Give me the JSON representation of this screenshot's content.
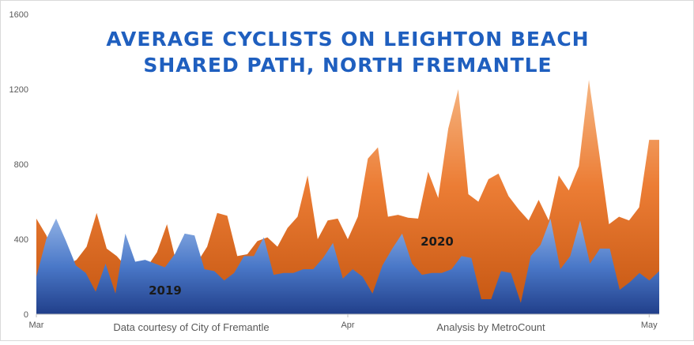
{
  "chart_data": {
    "type": "area",
    "title_lines": [
      "AVERAGE CYCLISTS ON LEIGHTON BEACH",
      "SHARED PATH, NORTH FREMANTLE"
    ],
    "ylim": [
      0,
      1600
    ],
    "yticks": [
      0,
      400,
      800,
      1200,
      1600
    ],
    "xtick_labels": [
      {
        "label": "Mar",
        "index": 0
      },
      {
        "label": "Apr",
        "index": 31
      },
      {
        "label": "May",
        "index": 61
      }
    ],
    "grid": false,
    "colors": {
      "2019": "#4472c4",
      "2020": "#ed7d31"
    },
    "series": [
      {
        "name": "2020",
        "values": [
          510,
          420,
          270,
          260,
          290,
          360,
          540,
          350,
          310,
          250,
          270,
          250,
          330,
          480,
          260,
          285,
          275,
          360,
          540,
          525,
          310,
          320,
          390,
          410,
          360,
          460,
          520,
          740,
          400,
          500,
          510,
          400,
          520,
          830,
          890,
          520,
          530,
          515,
          510,
          760,
          620,
          990,
          1200,
          640,
          600,
          720,
          750,
          630,
          560,
          500,
          610,
          500,
          740,
          660,
          790,
          1250,
          870,
          480,
          520,
          500,
          570,
          930,
          930
        ],
        "label": "2020"
      },
      {
        "name": "2019",
        "values": [
          200,
          400,
          510,
          390,
          260,
          220,
          120,
          270,
          110,
          430,
          280,
          290,
          270,
          250,
          320,
          430,
          420,
          240,
          230,
          180,
          220,
          310,
          310,
          410,
          210,
          220,
          220,
          240,
          240,
          300,
          380,
          190,
          240,
          200,
          110,
          260,
          350,
          430,
          270,
          210,
          220,
          220,
          240,
          310,
          300,
          80,
          80,
          230,
          220,
          60,
          310,
          370,
          510,
          240,
          310,
          500,
          270,
          350,
          350,
          130,
          170,
          220,
          180,
          230
        ],
        "label": "2019"
      }
    ],
    "credits": [
      "Data courtesy of City of Fremantle",
      "Analysis by MetroCount"
    ]
  }
}
